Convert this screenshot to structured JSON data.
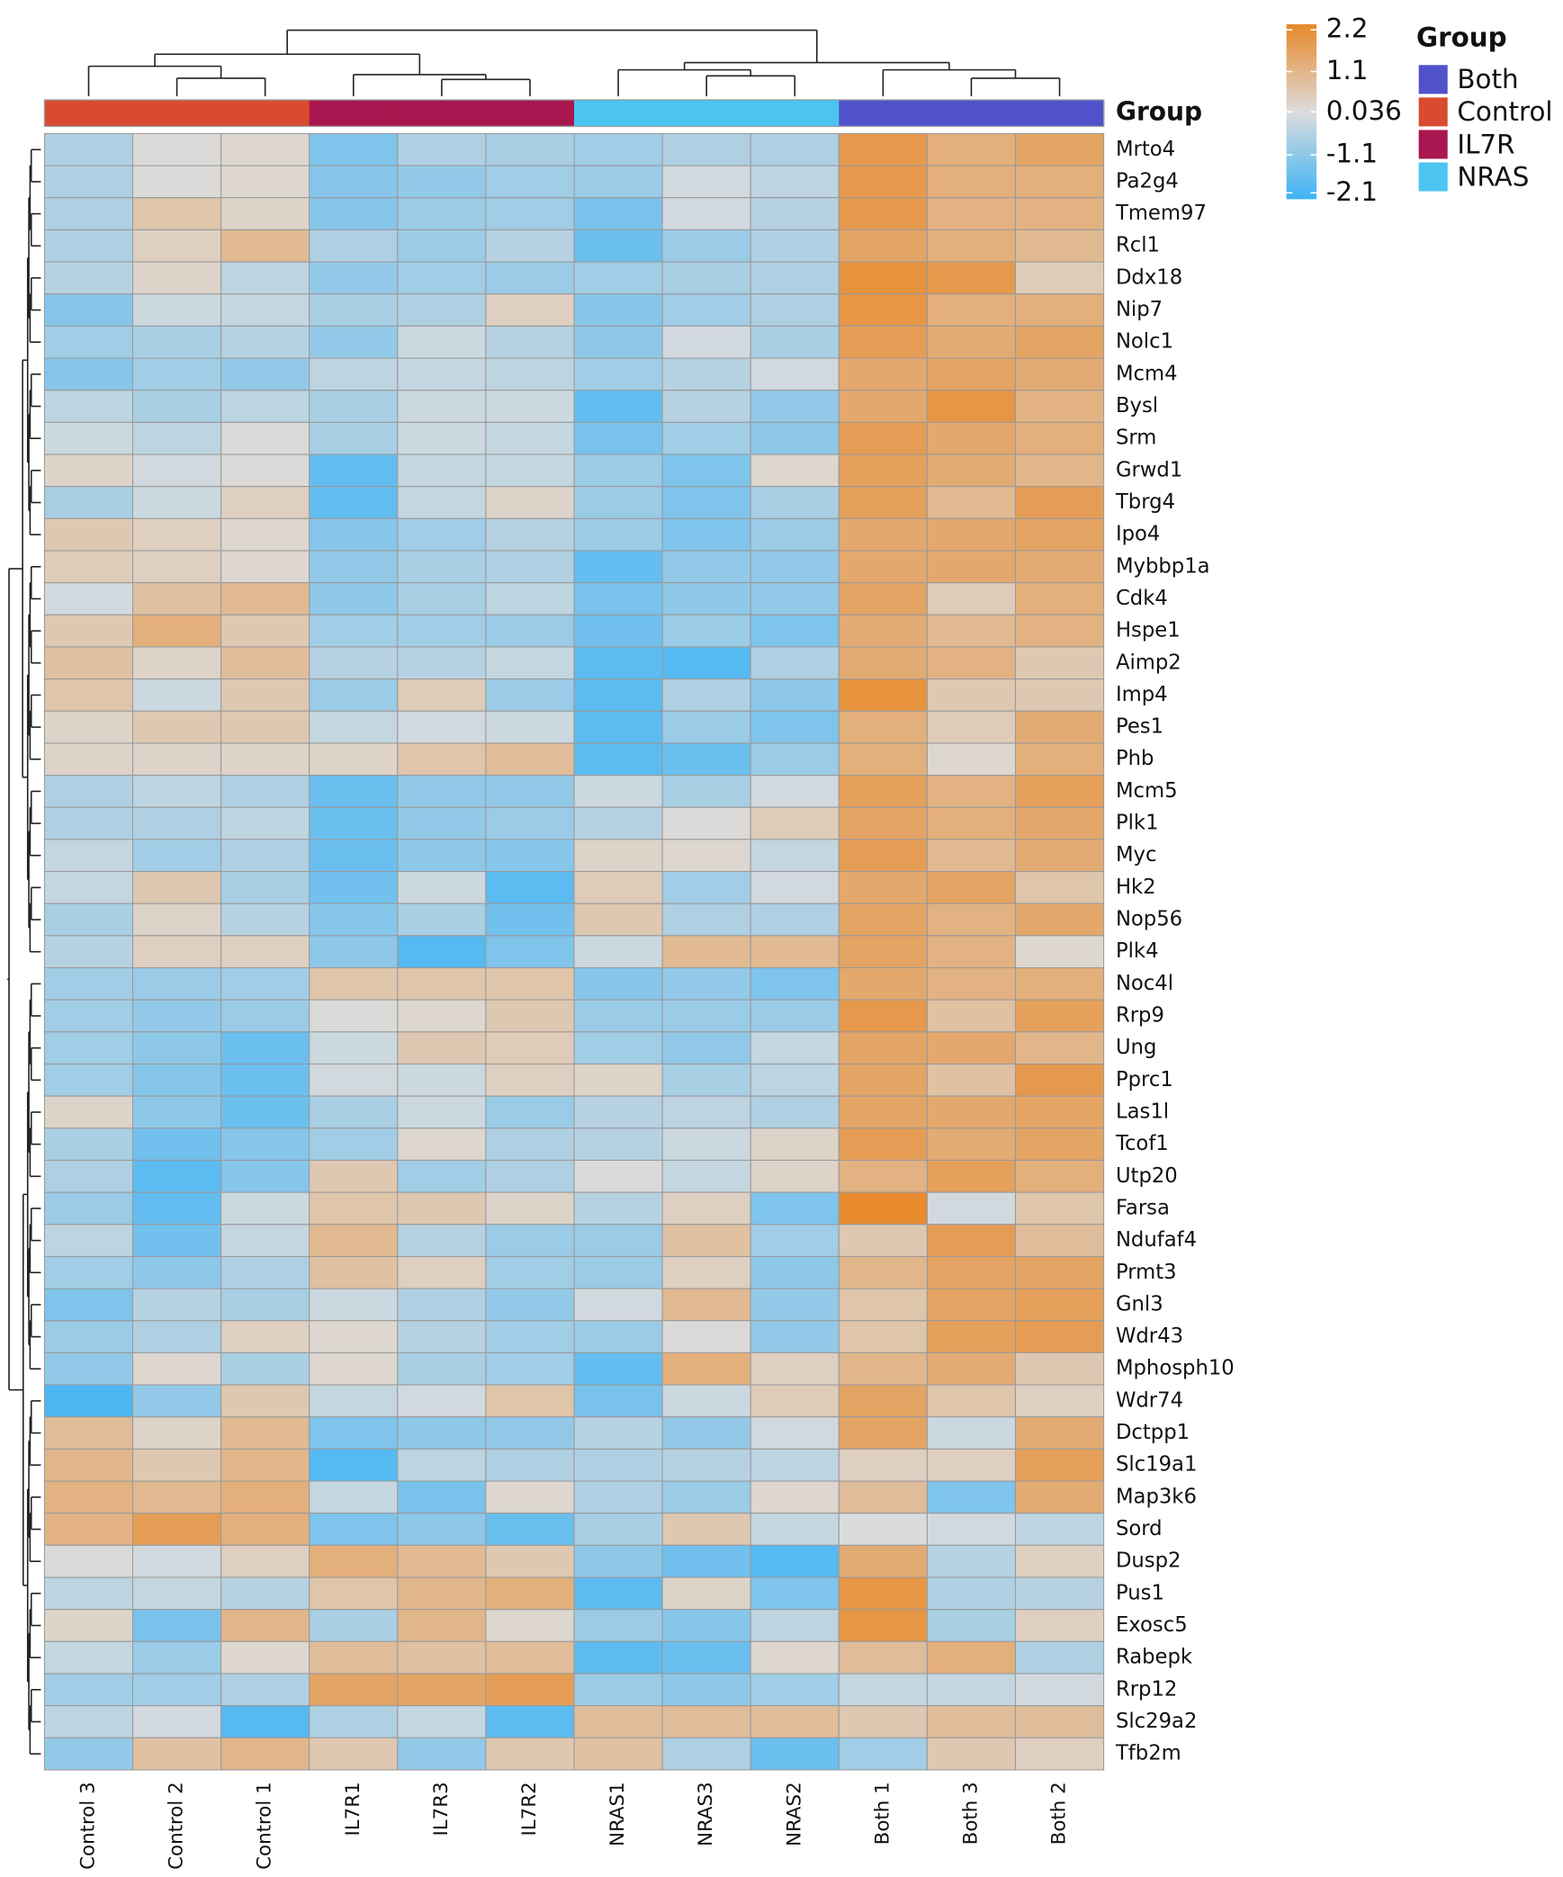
{
  "chart_data": {
    "type": "heatmap",
    "annotation_title": "Group",
    "columns": [
      "Control 3",
      "Control 2",
      "Control 1",
      "IL7R1",
      "IL7R3",
      "IL7R2",
      "NRAS1",
      "NRAS3",
      "NRAS2",
      "Both 1",
      "Both 3",
      "Both 2"
    ],
    "column_groups": [
      "Control",
      "Control",
      "Control",
      "IL7R",
      "IL7R",
      "IL7R",
      "NRAS",
      "NRAS",
      "NRAS",
      "Both",
      "Both",
      "Both"
    ],
    "groups": [
      {
        "name": "Both",
        "color": "#5052cc"
      },
      {
        "name": "Control",
        "color": "#d94b30"
      },
      {
        "name": "IL7R",
        "color": "#a8174f"
      },
      {
        "name": "NRAS",
        "color": "#4cc4f2"
      }
    ],
    "rows": [
      "Mrto4",
      "Pa2g4",
      "Tmem97",
      "Rcl1",
      "Ddx18",
      "Nip7",
      "Nolc1",
      "Mcm4",
      "Bysl",
      "Srm",
      "Grwd1",
      "Tbrg4",
      "Ipo4",
      "Mybbp1a",
      "Cdk4",
      "Hspe1",
      "Aimp2",
      "Imp4",
      "Pes1",
      "Phb",
      "Mcm5",
      "Plk1",
      "Myc",
      "Hk2",
      "Nop56",
      "Plk4",
      "Noc4l",
      "Rrp9",
      "Ung",
      "Pprc1",
      "Las1l",
      "Tcof1",
      "Utp20",
      "Farsa",
      "Ndufaf4",
      "Prmt3",
      "Gnl3",
      "Wdr43",
      "Mphosph10",
      "Wdr74",
      "Dctpp1",
      "Slc19a1",
      "Map3k6",
      "Sord",
      "Dusp2",
      "Pus1",
      "Exosc5",
      "Rabepk",
      "Rrp12",
      "Slc29a2",
      "Tfb2m"
    ],
    "values": [
      [
        -0.6,
        0.1,
        0.2,
        -1.3,
        -0.6,
        -0.7,
        -0.8,
        -0.6,
        -0.6,
        1.9,
        1.3,
        1.6
      ],
      [
        -0.6,
        0.1,
        0.2,
        -1.2,
        -1.0,
        -0.8,
        -0.9,
        -0.1,
        -0.4,
        1.9,
        1.3,
        1.3
      ],
      [
        -0.6,
        0.7,
        0.3,
        -1.2,
        -0.9,
        -0.8,
        -1.4,
        -0.1,
        -0.5,
        1.9,
        1.2,
        1.2
      ],
      [
        -0.6,
        0.4,
        1.0,
        -0.6,
        -0.9,
        -0.5,
        -1.6,
        -0.9,
        -0.6,
        1.6,
        1.3,
        1.0
      ],
      [
        -0.5,
        0.3,
        -0.4,
        -1.0,
        -0.8,
        -0.9,
        -0.8,
        -0.7,
        -0.6,
        2.1,
        1.9,
        0.5
      ],
      [
        -1.2,
        -0.2,
        -0.3,
        -0.7,
        -0.6,
        0.4,
        -1.2,
        -0.8,
        -0.6,
        2.0,
        1.3,
        1.3
      ],
      [
        -0.8,
        -0.7,
        -0.5,
        -1.0,
        -0.2,
        -0.5,
        -1.1,
        -0.1,
        -0.7,
        1.8,
        1.4,
        1.6
      ],
      [
        -1.2,
        -0.8,
        -1.0,
        -0.4,
        -0.3,
        -0.4,
        -0.8,
        -0.5,
        -0.1,
        1.5,
        1.6,
        1.4
      ],
      [
        -0.4,
        -0.7,
        -0.4,
        -0.7,
        -0.2,
        -0.2,
        -1.7,
        -0.5,
        -1.0,
        1.5,
        2.0,
        1.2
      ],
      [
        -0.2,
        -0.4,
        0.1,
        -0.7,
        -0.2,
        -0.3,
        -1.4,
        -0.8,
        -1.1,
        1.8,
        1.5,
        1.3
      ],
      [
        0.3,
        -0.1,
        0.1,
        -1.7,
        -0.3,
        -0.3,
        -0.9,
        -1.3,
        0.2,
        1.7,
        1.4,
        1.1
      ],
      [
        -0.7,
        -0.2,
        0.4,
        -1.7,
        -0.3,
        0.3,
        -0.9,
        -1.3,
        -0.7,
        1.7,
        1.0,
        1.8
      ],
      [
        0.6,
        0.4,
        0.2,
        -1.2,
        -0.8,
        -0.5,
        -0.9,
        -1.3,
        -0.9,
        1.5,
        1.5,
        1.6
      ],
      [
        0.5,
        0.4,
        0.2,
        -1.0,
        -0.7,
        -0.6,
        -1.7,
        -1.0,
        -1.0,
        1.5,
        1.5,
        1.4
      ],
      [
        -0.1,
        0.8,
        1.0,
        -1.1,
        -0.7,
        -0.4,
        -1.4,
        -1.1,
        -1.0,
        1.6,
        0.5,
        1.3
      ],
      [
        0.6,
        1.3,
        0.6,
        -0.8,
        -0.8,
        -0.9,
        -1.5,
        -0.9,
        -1.3,
        1.4,
        1.0,
        1.2
      ],
      [
        0.8,
        0.3,
        0.9,
        -0.5,
        -0.5,
        -0.3,
        -1.8,
        -1.9,
        -0.6,
        1.4,
        1.2,
        0.6
      ],
      [
        0.7,
        -0.2,
        0.6,
        -0.9,
        0.5,
        -0.9,
        -1.8,
        -0.6,
        -1.1,
        2.1,
        0.6,
        0.6
      ],
      [
        0.3,
        0.6,
        0.6,
        -0.3,
        -0.1,
        -0.2,
        -1.8,
        -0.9,
        -1.3,
        1.3,
        0.5,
        1.4
      ],
      [
        0.3,
        0.3,
        0.3,
        0.3,
        0.7,
        0.9,
        -1.8,
        -1.6,
        -0.9,
        1.3,
        0.2,
        1.3
      ],
      [
        -0.6,
        -0.4,
        -0.6,
        -1.6,
        -1.0,
        -1.0,
        -0.2,
        -0.7,
        -0.1,
        1.7,
        1.2,
        1.7
      ],
      [
        -0.6,
        -0.6,
        -0.4,
        -1.6,
        -1.0,
        -0.9,
        -0.5,
        0.1,
        0.5,
        1.6,
        1.3,
        1.5
      ],
      [
        -0.3,
        -0.8,
        -0.6,
        -1.6,
        -1.1,
        -1.2,
        0.3,
        0.2,
        -0.3,
        1.8,
        1.0,
        1.4
      ],
      [
        -0.3,
        0.6,
        -0.7,
        -1.5,
        -0.2,
        -1.8,
        0.5,
        -0.8,
        -0.1,
        1.5,
        1.6,
        0.7
      ],
      [
        -0.7,
        0.3,
        -0.5,
        -1.2,
        -0.7,
        -1.5,
        0.6,
        -0.6,
        -0.6,
        1.6,
        1.2,
        1.5
      ],
      [
        -0.5,
        0.4,
        0.4,
        -1.1,
        -1.9,
        -1.3,
        -0.2,
        1.0,
        1.0,
        1.6,
        1.2,
        0.2
      ],
      [
        -0.8,
        -0.9,
        -0.8,
        0.7,
        0.7,
        0.7,
        -1.2,
        -1.0,
        -1.3,
        1.5,
        1.2,
        1.3
      ],
      [
        -0.8,
        -1.0,
        -0.9,
        0.1,
        0.2,
        0.6,
        -0.9,
        -0.9,
        -0.9,
        1.9,
        0.8,
        1.7
      ],
      [
        -0.8,
        -1.1,
        -1.6,
        -0.2,
        0.6,
        0.5,
        -0.8,
        -1.0,
        -0.3,
        1.6,
        1.5,
        1.1
      ],
      [
        -0.8,
        -1.2,
        -1.6,
        -0.1,
        -0.2,
        0.4,
        0.3,
        -0.7,
        -0.4,
        1.6,
        0.8,
        1.9
      ],
      [
        0.3,
        -1.1,
        -1.6,
        -0.7,
        -0.2,
        -0.9,
        -0.5,
        -0.4,
        -0.6,
        1.6,
        1.5,
        1.6
      ],
      [
        -0.7,
        -1.5,
        -1.2,
        -0.8,
        0.2,
        -0.6,
        -0.5,
        -0.2,
        0.3,
        1.8,
        1.4,
        1.6
      ],
      [
        -0.6,
        -1.8,
        -1.2,
        0.6,
        -0.8,
        -0.6,
        0.1,
        -0.3,
        0.3,
        1.2,
        1.7,
        1.3
      ],
      [
        -0.9,
        -1.7,
        -0.2,
        0.7,
        0.6,
        0.3,
        -0.5,
        0.4,
        -1.3,
        2.3,
        -0.1,
        0.7
      ],
      [
        -0.4,
        -1.5,
        -0.3,
        1.0,
        -0.5,
        -0.9,
        -0.9,
        0.8,
        -0.8,
        0.6,
        1.8,
        0.9
      ],
      [
        -0.8,
        -1.1,
        -0.6,
        0.8,
        0.4,
        -0.8,
        -0.9,
        0.4,
        -1.1,
        1.1,
        1.6,
        1.6
      ],
      [
        -1.3,
        -0.5,
        -0.7,
        -0.2,
        -0.6,
        -1.0,
        -0.1,
        1.0,
        -1.0,
        0.7,
        1.6,
        1.7
      ],
      [
        -0.9,
        -0.6,
        0.4,
        0.2,
        -0.5,
        -0.8,
        -0.9,
        0.1,
        -1.0,
        0.7,
        1.7,
        1.8
      ],
      [
        -1.0,
        0.2,
        -0.7,
        0.2,
        -0.7,
        -0.8,
        -1.7,
        1.3,
        0.4,
        1.1,
        1.4,
        0.6
      ],
      [
        -2.0,
        -1.0,
        0.6,
        -0.3,
        -0.1,
        0.7,
        -1.4,
        -0.2,
        0.5,
        1.6,
        0.7,
        0.4
      ],
      [
        0.9,
        0.3,
        1.0,
        -1.3,
        -1.1,
        -1.0,
        -0.5,
        -1.0,
        -0.1,
        1.6,
        -0.2,
        1.4
      ],
      [
        1.1,
        0.6,
        1.1,
        -1.9,
        -0.4,
        -0.6,
        -0.6,
        -0.5,
        -0.4,
        0.4,
        0.4,
        1.7
      ],
      [
        1.2,
        1.0,
        1.3,
        -0.3,
        -1.4,
        0.2,
        -0.6,
        -0.9,
        0.2,
        0.9,
        -1.3,
        1.4
      ],
      [
        1.2,
        1.8,
        1.3,
        -1.3,
        -1.1,
        -1.6,
        -0.7,
        0.6,
        -0.3,
        0.0,
        -0.1,
        -0.4
      ],
      [
        0.1,
        -0.1,
        0.4,
        1.3,
        1.0,
        0.6,
        -1.1,
        -1.5,
        -1.9,
        1.4,
        -0.5,
        0.4
      ],
      [
        -0.4,
        -0.3,
        -0.5,
        0.7,
        1.1,
        1.3,
        -1.8,
        0.3,
        -1.3,
        2.0,
        -0.6,
        -0.5
      ],
      [
        0.3,
        -1.4,
        1.1,
        -0.7,
        1.1,
        0.2,
        -0.9,
        -1.2,
        -0.4,
        2.0,
        -0.7,
        0.4
      ],
      [
        -0.3,
        -0.9,
        0.2,
        0.9,
        0.8,
        0.9,
        -1.8,
        -1.6,
        0.2,
        0.9,
        1.3,
        -0.6
      ],
      [
        -0.8,
        -0.8,
        -0.6,
        1.6,
        1.6,
        1.8,
        -0.9,
        -1.1,
        -0.8,
        -0.3,
        -0.3,
        -0.1
      ],
      [
        -0.4,
        -0.1,
        -1.9,
        -0.6,
        -0.3,
        -1.8,
        0.9,
        0.9,
        0.9,
        0.6,
        0.9,
        0.9
      ],
      [
        -1.0,
        0.8,
        1.1,
        0.6,
        -1.0,
        0.6,
        0.8,
        -0.6,
        -1.6,
        -0.8,
        0.6,
        0.4
      ]
    ],
    "colors": [
      "#3db3f6",
      "#dcdcdc",
      "#e8892a"
    ],
    "clim": [
      -2.25,
      2.35
    ],
    "colorbar_ticks": [
      2.2,
      1.1,
      0.036,
      -1.1,
      -2.1
    ]
  }
}
